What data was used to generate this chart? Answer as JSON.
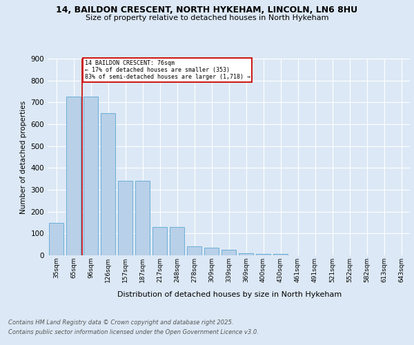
{
  "title_line1": "14, BAILDON CRESCENT, NORTH HYKEHAM, LINCOLN, LN6 8HU",
  "title_line2": "Size of property relative to detached houses in North Hykeham",
  "xlabel": "Distribution of detached houses by size in North Hykeham",
  "ylabel": "Number of detached properties",
  "categories": [
    "35sqm",
    "65sqm",
    "96sqm",
    "126sqm",
    "157sqm",
    "187sqm",
    "217sqm",
    "248sqm",
    "278sqm",
    "309sqm",
    "339sqm",
    "369sqm",
    "400sqm",
    "430sqm",
    "461sqm",
    "491sqm",
    "521sqm",
    "552sqm",
    "582sqm",
    "613sqm",
    "643sqm"
  ],
  "values": [
    150,
    725,
    725,
    650,
    340,
    340,
    130,
    130,
    40,
    35,
    25,
    10,
    5,
    5,
    0,
    0,
    0,
    0,
    0,
    0,
    0
  ],
  "bar_color": "#b8d0e8",
  "bar_edge_color": "#6baed6",
  "vline_x": 1.5,
  "vline_color": "#cc0000",
  "annotation_text": "14 BAILDON CRESCENT: 76sqm\n← 17% of detached houses are smaller (353)\n83% of semi-detached houses are larger (1,718) →",
  "annotation_box_edgecolor": "#cc0000",
  "background_color": "#dce8f5",
  "plot_bg_color": "#dce8f5",
  "ylim": [
    0,
    900
  ],
  "yticks": [
    0,
    100,
    200,
    300,
    400,
    500,
    600,
    700,
    800,
    900
  ],
  "footer_line1": "Contains HM Land Registry data © Crown copyright and database right 2025.",
  "footer_line2": "Contains public sector information licensed under the Open Government Licence v3.0.",
  "title_fontsize": 9,
  "subtitle_fontsize": 8,
  "bar_width": 0.85
}
